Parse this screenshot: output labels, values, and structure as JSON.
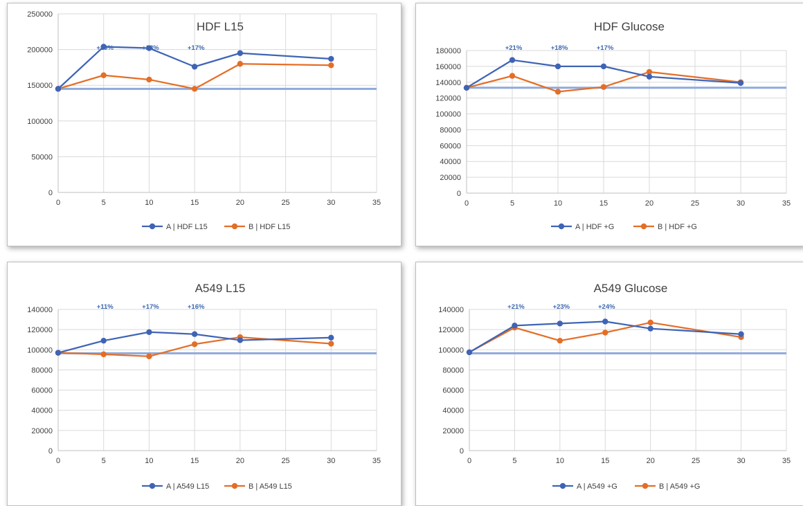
{
  "chart_data": [
    {
      "type": "line",
      "title": "HDF L15",
      "xlabel": "",
      "ylabel": "",
      "xlim": [
        0,
        35
      ],
      "xticks": [
        0,
        5,
        10,
        15,
        20,
        25,
        30,
        35
      ],
      "ylim": [
        0,
        250000
      ],
      "yticks": [
        0,
        50000,
        100000,
        150000,
        200000,
        250000
      ],
      "grid": true,
      "legend_position": "bottom",
      "baseline": 145000,
      "x": [
        0,
        5,
        10,
        15,
        20,
        30
      ],
      "series": [
        {
          "name": "A | HDF L15",
          "color": "#3f64b5",
          "values": [
            145000,
            204000,
            202000,
            176000,
            195000,
            187000
          ]
        },
        {
          "name": "B | HDF L15",
          "color": "#e46e27",
          "values": [
            145000,
            164000,
            158000,
            145000,
            180000,
            178000
          ]
        }
      ],
      "annotations": [
        {
          "x": 5,
          "text": "+29%"
        },
        {
          "x": 10,
          "text": "+28%"
        },
        {
          "x": 15,
          "text": "+17%"
        }
      ]
    },
    {
      "type": "line",
      "title": "HDF Glucose",
      "xlabel": "",
      "ylabel": "",
      "xlim": [
        0,
        35
      ],
      "xticks": [
        0,
        5,
        10,
        15,
        20,
        25,
        30,
        35
      ],
      "ylim": [
        0,
        180000
      ],
      "yticks": [
        0,
        20000,
        40000,
        60000,
        80000,
        100000,
        120000,
        140000,
        160000,
        180000
      ],
      "grid": true,
      "legend_position": "bottom",
      "baseline": 133000,
      "x": [
        0,
        5,
        10,
        15,
        20,
        30
      ],
      "series": [
        {
          "name": "A | HDF +G",
          "color": "#3f64b5",
          "values": [
            133000,
            168000,
            160000,
            160000,
            147000,
            139000
          ]
        },
        {
          "name": "B | HDF +G",
          "color": "#e46e27",
          "values": [
            133000,
            148000,
            128000,
            134000,
            153000,
            140000
          ]
        }
      ],
      "annotations": [
        {
          "x": 5,
          "text": "+21%"
        },
        {
          "x": 10,
          "text": "+18%"
        },
        {
          "x": 15,
          "text": "+17%"
        }
      ]
    },
    {
      "type": "line",
      "title": "A549 L15",
      "xlabel": "",
      "ylabel": "",
      "xlim": [
        0,
        35
      ],
      "xticks": [
        0,
        5,
        10,
        15,
        20,
        25,
        30,
        35
      ],
      "ylim": [
        0,
        140000
      ],
      "yticks": [
        0,
        20000,
        40000,
        60000,
        80000,
        100000,
        120000,
        140000
      ],
      "grid": true,
      "legend_position": "bottom",
      "baseline": 96500,
      "x": [
        0,
        5,
        10,
        15,
        20,
        30
      ],
      "series": [
        {
          "name": "A | A549 L15",
          "color": "#3f64b5",
          "values": [
            97000,
            109000,
            117500,
            115500,
            109500,
            112000
          ]
        },
        {
          "name": "B | A549 L15",
          "color": "#e46e27",
          "values": [
            97000,
            95500,
            93500,
            105500,
            112500,
            106000
          ]
        }
      ],
      "annotations": [
        {
          "x": 5,
          "text": "+11%"
        },
        {
          "x": 10,
          "text": "+17%"
        },
        {
          "x": 15,
          "text": "+16%"
        }
      ]
    },
    {
      "type": "line",
      "title": "A549 Glucose",
      "xlabel": "",
      "ylabel": "",
      "xlim": [
        0,
        35
      ],
      "xticks": [
        0,
        5,
        10,
        15,
        20,
        25,
        30,
        35
      ],
      "ylim": [
        0,
        140000
      ],
      "yticks": [
        0,
        20000,
        40000,
        60000,
        80000,
        100000,
        120000,
        140000
      ],
      "grid": true,
      "legend_position": "bottom",
      "baseline": 96500,
      "x": [
        0,
        5,
        10,
        15,
        20,
        30
      ],
      "series": [
        {
          "name": "A | A549 +G",
          "color": "#3f64b5",
          "values": [
            97500,
            124000,
            126000,
            128000,
            121000,
            115500
          ]
        },
        {
          "name": "B | A549 +G",
          "color": "#e46e27",
          "values": [
            97500,
            122000,
            109000,
            117000,
            127000,
            112500
          ]
        }
      ],
      "annotations": [
        {
          "x": 5,
          "text": "+21%"
        },
        {
          "x": 10,
          "text": "+23%"
        },
        {
          "x": 15,
          "text": "+24%"
        }
      ]
    }
  ],
  "colors": {
    "series_a": "#3f64b5",
    "series_b": "#e46e27",
    "baseline": "#8eaadb",
    "gridline": "#d9d9d9",
    "annotation": "#3c68b0"
  }
}
